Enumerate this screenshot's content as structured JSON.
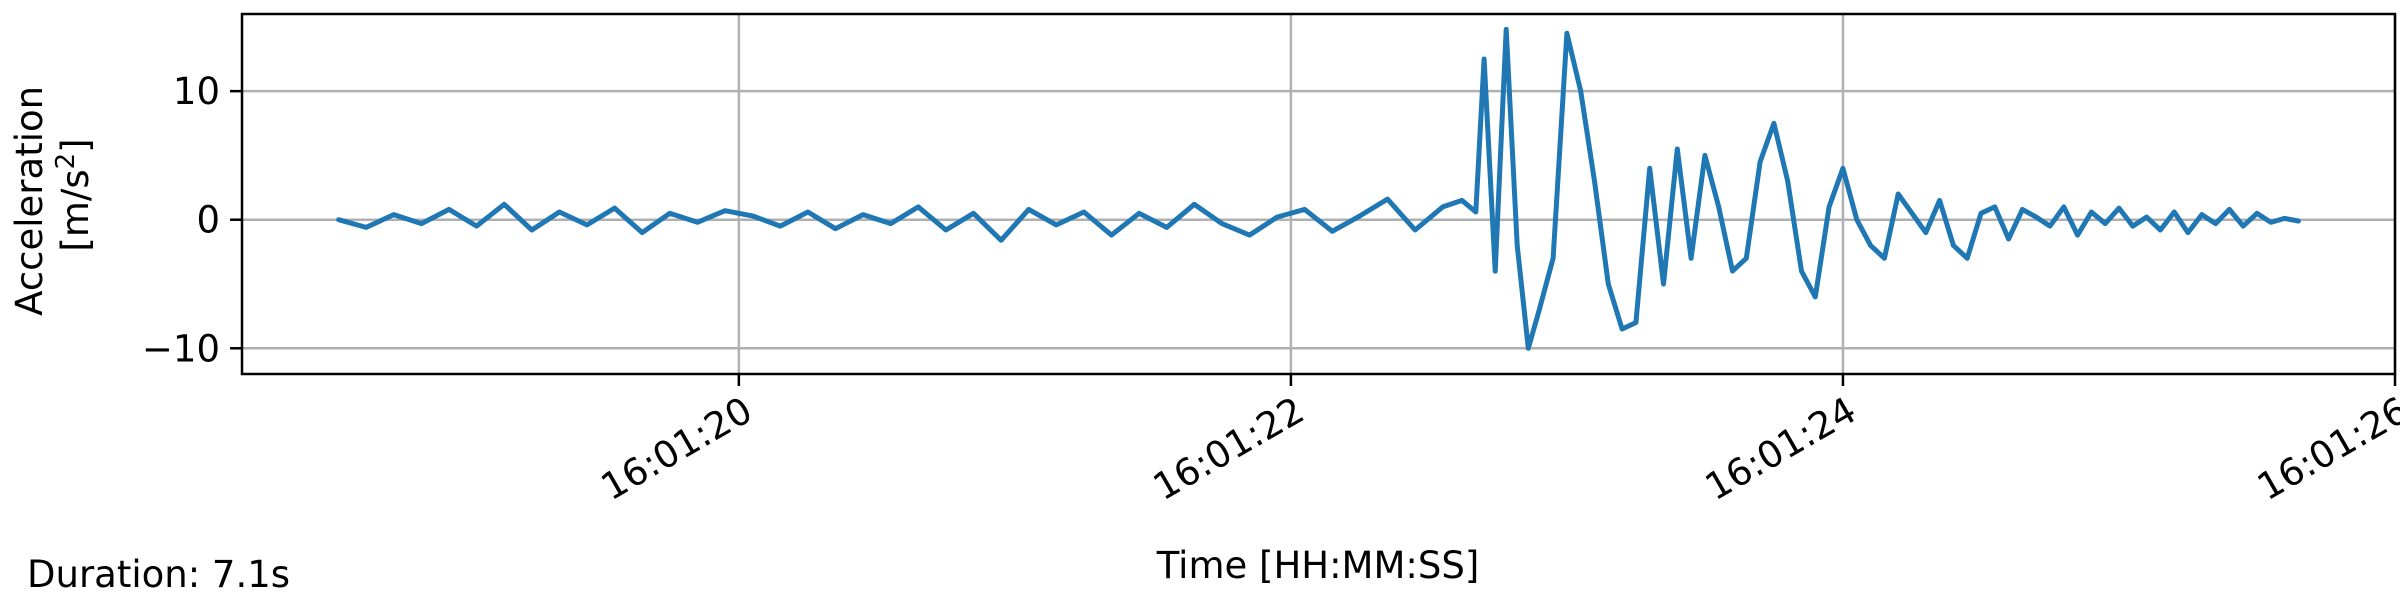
{
  "chart_data": {
    "type": "line",
    "xlabel": "Time [HH:MM:SS]",
    "ylabel_line1": "Acceleration",
    "ylabel_line2_prefix": "[m/s",
    "ylabel_line2_sup": "2",
    "ylabel_line2_suffix": "]",
    "x_axis": "time",
    "x_ticks": [
      "16:01:20",
      "16:01:22",
      "16:01:24",
      "16:01:26"
    ],
    "y_ticks": [
      "10",
      "0",
      "−10"
    ],
    "y_tick_values": [
      10,
      0,
      -10
    ],
    "xlim": [
      "16:01:18.2",
      "16:01:26.0"
    ],
    "ylim": [
      -12,
      16
    ],
    "grid": true,
    "line_color": "#1f77b4",
    "series": [
      {
        "x": [
          "16:01:18.55",
          "16:01:18.65",
          "16:01:18.75",
          "16:01:18.85",
          "16:01:18.95",
          "16:01:19.05",
          "16:01:19.15",
          "16:01:19.25",
          "16:01:19.35",
          "16:01:19.45",
          "16:01:19.55",
          "16:01:19.65",
          "16:01:19.75",
          "16:01:19.85",
          "16:01:19.95",
          "16:01:20.05",
          "16:01:20.15",
          "16:01:20.25",
          "16:01:20.35",
          "16:01:20.45",
          "16:01:20.55",
          "16:01:20.65",
          "16:01:20.75",
          "16:01:20.85",
          "16:01:20.95",
          "16:01:21.05",
          "16:01:21.15",
          "16:01:21.25",
          "16:01:21.35",
          "16:01:21.45",
          "16:01:21.55",
          "16:01:21.65",
          "16:01:21.75",
          "16:01:21.85",
          "16:01:21.95",
          "16:01:22.05",
          "16:01:22.15",
          "16:01:22.25",
          "16:01:22.35",
          "16:01:22.45",
          "16:01:22.55",
          "16:01:22.62",
          "16:01:22.67",
          "16:01:22.70",
          "16:01:22.74",
          "16:01:22.78",
          "16:01:22.82",
          "16:01:22.86",
          "16:01:22.90",
          "16:01:22.95",
          "16:01:23.00",
          "16:01:23.05",
          "16:01:23.10",
          "16:01:23.15",
          "16:01:23.20",
          "16:01:23.25",
          "16:01:23.30",
          "16:01:23.35",
          "16:01:23.40",
          "16:01:23.45",
          "16:01:23.50",
          "16:01:23.55",
          "16:01:23.60",
          "16:01:23.65",
          "16:01:23.70",
          "16:01:23.75",
          "16:01:23.80",
          "16:01:23.85",
          "16:01:23.90",
          "16:01:23.95",
          "16:01:24.00",
          "16:01:24.05",
          "16:01:24.10",
          "16:01:24.15",
          "16:01:24.20",
          "16:01:24.25",
          "16:01:24.30",
          "16:01:24.35",
          "16:01:24.40",
          "16:01:24.45",
          "16:01:24.50",
          "16:01:24.55",
          "16:01:24.60",
          "16:01:24.65",
          "16:01:24.70",
          "16:01:24.75",
          "16:01:24.80",
          "16:01:24.85",
          "16:01:24.90",
          "16:01:24.95",
          "16:01:25.00",
          "16:01:25.05",
          "16:01:25.10",
          "16:01:25.15",
          "16:01:25.20",
          "16:01:25.25",
          "16:01:25.30",
          "16:01:25.35",
          "16:01:25.40",
          "16:01:25.45",
          "16:01:25.50",
          "16:01:25.55",
          "16:01:25.60",
          "16:01:25.65"
        ],
        "y": [
          0,
          -0.6,
          0.4,
          -0.3,
          0.8,
          -0.5,
          1.2,
          -0.8,
          0.6,
          -0.4,
          0.9,
          -1.0,
          0.5,
          -0.2,
          0.7,
          0.3,
          -0.5,
          0.6,
          -0.7,
          0.4,
          -0.3,
          1.0,
          -0.8,
          0.5,
          -1.6,
          0.8,
          -0.4,
          0.6,
          -1.2,
          0.5,
          -0.6,
          1.2,
          -0.3,
          -1.2,
          0.2,
          0.8,
          -0.9,
          0.3,
          1.6,
          -0.8,
          1.0,
          1.5,
          0.6,
          12.5,
          -4.0,
          14.8,
          -2.0,
          -10.0,
          -7.0,
          -3.0,
          14.5,
          10.0,
          3.0,
          -5.0,
          -8.5,
          -8.0,
          4.0,
          -5.0,
          5.5,
          -3.0,
          5.0,
          1.0,
          -4.0,
          -3.0,
          4.5,
          7.5,
          3.0,
          -4.0,
          -6.0,
          1.0,
          4.0,
          0.0,
          -2.0,
          -3.0,
          2.0,
          0.5,
          -1.0,
          1.5,
          -2.0,
          -3.0,
          0.5,
          1.0,
          -1.5,
          0.8,
          0.2,
          -0.5,
          1.0,
          -1.2,
          0.6,
          -0.3,
          0.9,
          -0.5,
          0.2,
          -0.8,
          0.6,
          -1.0,
          0.4,
          -0.3,
          0.8,
          -0.5,
          0.5,
          -0.2,
          0.1,
          -0.1
        ]
      }
    ]
  },
  "duration_label": "Duration: 7.1s"
}
